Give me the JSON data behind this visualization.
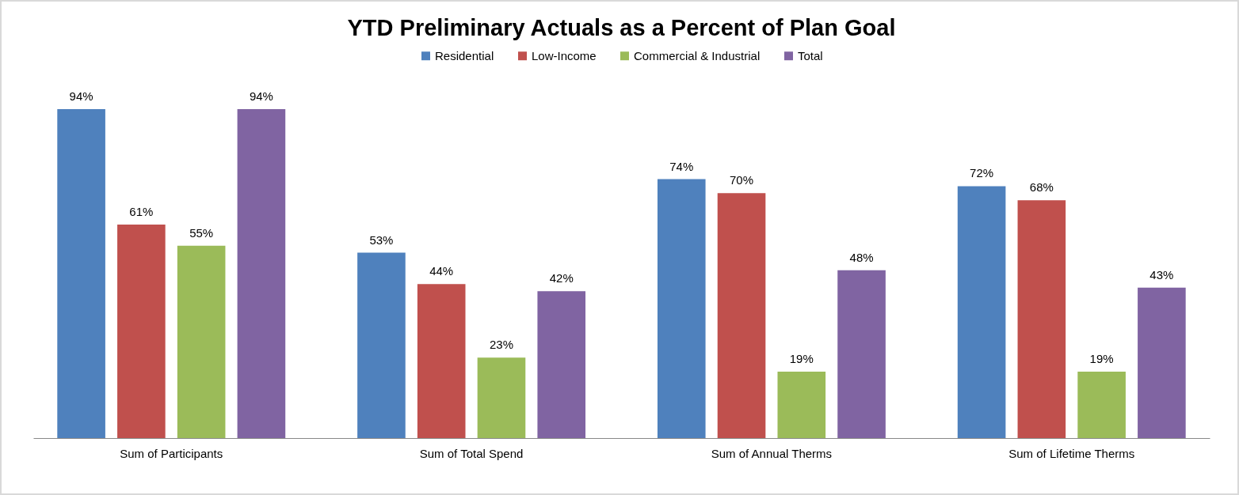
{
  "chart_data": {
    "type": "bar",
    "title": "YTD Preliminary Actuals as a Percent of Plan Goal",
    "categories": [
      "Sum of Participants",
      "Sum of Total Spend",
      "Sum of Annual Therms",
      "Sum of Lifetime Therms"
    ],
    "legend": "top",
    "series": [
      {
        "name": "Residential",
        "color": "#4f81bd",
        "values": [
          94,
          53,
          74,
          72
        ],
        "value_labels": [
          "94%",
          "53%",
          "74%",
          "72%"
        ]
      },
      {
        "name": "Low-Income",
        "color": "#c0504d",
        "values": [
          61,
          44,
          70,
          68
        ],
        "value_labels": [
          "61%",
          "44%",
          "70%",
          "68%"
        ]
      },
      {
        "name": "Commercial & Industrial",
        "color": "#9bbb59",
        "values": [
          55,
          23,
          19,
          19
        ],
        "value_labels": [
          "55%",
          "23%",
          "19%",
          "19%"
        ]
      },
      {
        "name": "Total",
        "color": "#8064a2",
        "values": [
          94,
          42,
          48,
          43
        ],
        "value_labels": [
          "94%",
          "42%",
          "48%",
          "43%"
        ]
      }
    ]
  }
}
